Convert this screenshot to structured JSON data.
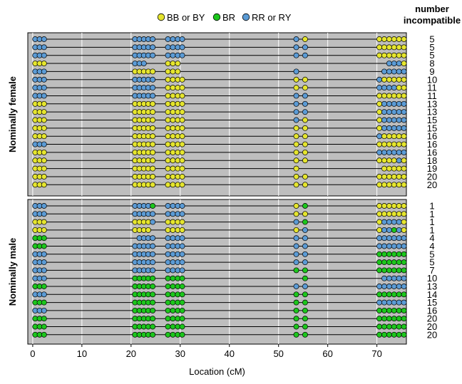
{
  "chart_data": {
    "type": "scatter",
    "xlabel": "Location (cM)",
    "x_range": [
      -1,
      76
    ],
    "x_ticks": [
      0,
      10,
      20,
      30,
      40,
      50,
      60,
      70
    ],
    "right_column_header": [
      "number",
      "incompatible"
    ],
    "legend_position": "top-center",
    "legend": [
      {
        "code": "Y",
        "label": "BB or BY",
        "color": "#e5e52e"
      },
      {
        "code": "G",
        "label": "BR",
        "color": "#1cc61c"
      },
      {
        "code": "B",
        "label": "RR or RY",
        "color": "#5b9bd5"
      }
    ],
    "marker_positions_cM": [
      0.5,
      1.4,
      2.3,
      20.8,
      21.7,
      22.6,
      23.5,
      24.4,
      27.5,
      28.5,
      29.5,
      30.4,
      53.6,
      55.4,
      70.5,
      71.5,
      72.5,
      73.5,
      74.5,
      75.5
    ],
    "panels": [
      {
        "name": "Nominally female",
        "individuals": [
          {
            "genotypes": "BBBBBBBBBBBBBYYYYYYY",
            "number_incompatible": "5"
          },
          {
            "genotypes": "BBBBBBBBBBBBBBYYYYYY",
            "number_incompatible": "5"
          },
          {
            "genotypes": "BBBBBBBBBBBBBBYYYYYY",
            "number_incompatible": "5"
          },
          {
            "genotypes": "YYYBBB  YYY     BBBY",
            "number_incompatible": "8"
          },
          {
            "genotypes": "BBBYYYYYYYY B  BBBBB",
            "number_incompatible": "9"
          },
          {
            "genotypes": "BBBBBBBBYYYYYYBYYYYY",
            "number_incompatible": "10"
          },
          {
            "genotypes": "BBBBBBBBYYYYYYBBBBYY",
            "number_incompatible": "11"
          },
          {
            "genotypes": "BBBBBBBBYYYYBBYYYYYY",
            "number_incompatible": "11"
          },
          {
            "genotypes": "YYYYYYYYYYYYBBYBBBBB",
            "number_incompatible": "13"
          },
          {
            "genotypes": "YYYYYYYYYYYYBBYBBBBB",
            "number_incompatible": "13"
          },
          {
            "genotypes": "YYYYYYYYYYYYBYYBBBBB",
            "number_incompatible": "15"
          },
          {
            "genotypes": "YYYYYYYYYYYYYYYBBBBB",
            "number_incompatible": "15"
          },
          {
            "genotypes": "YYYYYYYYYYYYYYBYYYYY",
            "number_incompatible": "16"
          },
          {
            "genotypes": "BBBYYYYYYYYYYYYYYYYY",
            "number_incompatible": "16"
          },
          {
            "genotypes": "YYYYYYYYYYYYYYBBBBBB",
            "number_incompatible": "16"
          },
          {
            "genotypes": "YYYYYYYYYYYYYYYYYYBY",
            "number_incompatible": "18"
          },
          {
            "genotypes": "YYYYYYYYYYYYY  YYYYY",
            "number_incompatible": "19"
          },
          {
            "genotypes": "YYYYYYYYYYYYYYYYYYYY",
            "number_incompatible": "20"
          },
          {
            "genotypes": "YYYYYYYYYYYYYYYYYYYY",
            "number_incompatible": "20"
          }
        ]
      },
      {
        "name": "Nominally male",
        "individuals": [
          {
            "genotypes": "BBBBBBBGBBBBYGYYYYYY",
            "number_incompatible": "1"
          },
          {
            "genotypes": "BBBBBBBBBBBBYYYYYYYY",
            "number_incompatible": "1"
          },
          {
            "genotypes": "YYYYYYYBYYYYBGYBBBBY",
            "number_incompatible": "1"
          },
          {
            "genotypes": "YYYYYYY YYYYYBYBBGBY",
            "number_incompatible": "1"
          },
          {
            "genotypes": "GGG BBBBBBBBBBBBBBBB",
            "number_incompatible": "4"
          },
          {
            "genotypes": "GGGBBBBBBBBBBBBBBBBB",
            "number_incompatible": "4"
          },
          {
            "genotypes": "BBBBBBBBBBBBBBGGGGGG",
            "number_incompatible": "5"
          },
          {
            "genotypes": "BBBBBBBBBBBBBBGGGGGG",
            "number_incompatible": "5"
          },
          {
            "genotypes": "BBBBBBBBBBBBGGGGGGGG",
            "number_incompatible": "7"
          },
          {
            "genotypes": "BBBGGGGGGGGG G BBBBB",
            "number_incompatible": "10"
          },
          {
            "genotypes": "GGGGGGGGGGGGBBBBBBBB",
            "number_incompatible": "13"
          },
          {
            "genotypes": "BBBGGGGGGGGGGGGGGGGG",
            "number_incompatible": "14"
          },
          {
            "genotypes": "GGGGGGGGGGGGGGBBBBBB",
            "number_incompatible": "15"
          },
          {
            "genotypes": "BBBGGGGGGGGGGGGGGGGG",
            "number_incompatible": "16"
          },
          {
            "genotypes": "GGGGGGGGGGGGGGGGGGGG",
            "number_incompatible": "20"
          },
          {
            "genotypes": "GGGGGGGGGGGGGGGGGGGG",
            "number_incompatible": "20"
          },
          {
            "genotypes": "GGGGGGGGGGGGGGGGGGGG",
            "number_incompatible": "20"
          }
        ]
      }
    ]
  }
}
